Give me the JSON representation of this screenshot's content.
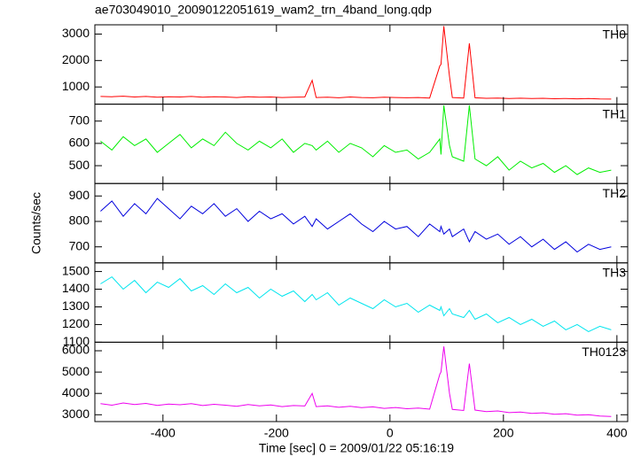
{
  "chart_data": {
    "type": "line",
    "title": "ae703049010_20090122051619_wam2_trn_4band_long.qdp",
    "xlabel": "Time [sec] 0 = 2009/01/22 05:16:19",
    "ylabel": "Counts/sec",
    "xlim": [
      -520,
      419
    ],
    "xticks": [
      -400,
      -200,
      0,
      200,
      400
    ],
    "x": [
      -510,
      -490,
      -470,
      -450,
      -430,
      -410,
      -390,
      -370,
      -350,
      -330,
      -310,
      -290,
      -270,
      -250,
      -230,
      -210,
      -190,
      -170,
      -150,
      -137,
      -130,
      -110,
      -90,
      -70,
      -50,
      -30,
      -10,
      10,
      30,
      50,
      70,
      88,
      90,
      95,
      105,
      110,
      130,
      140,
      150,
      170,
      190,
      210,
      230,
      250,
      270,
      290,
      310,
      330,
      350,
      370,
      390
    ],
    "panels": [
      {
        "ylim": [
          350,
          3350
        ],
        "yticks": [
          1000,
          2000,
          3000
        ],
        "series": [
          {
            "name": "TH0",
            "color": "#ff0000",
            "values": [
              640,
              630,
              650,
              620,
              640,
              610,
              630,
              620,
              640,
              610,
              630,
              620,
              600,
              630,
              610,
              620,
              600,
              610,
              620,
              1250,
              600,
              610,
              590,
              620,
              600,
              590,
              610,
              600,
              590,
              600,
              580,
              1800,
              1850,
              3300,
              1400,
              600,
              580,
              2650,
              590,
              570,
              580,
              560,
              575,
              560,
              570,
              555,
              565,
              550,
              560,
              545,
              540
            ]
          }
        ]
      },
      {
        "ylim": [
          420,
          776
        ],
        "yticks": [
          500,
          600,
          700
        ],
        "series": [
          {
            "name": "TH1",
            "color": "#00ee00",
            "values": [
              610,
              570,
              630,
              590,
              620,
              560,
              600,
              640,
              580,
              620,
              590,
              650,
              600,
              570,
              610,
              580,
              620,
              560,
              600,
              590,
              570,
              610,
              560,
              600,
              580,
              540,
              590,
              560,
              570,
              530,
              560,
              620,
              550,
              770,
              590,
              540,
              520,
              770,
              530,
              500,
              540,
              480,
              520,
              490,
              510,
              470,
              500,
              460,
              490,
              470,
              480
            ]
          }
        ]
      },
      {
        "ylim": [
          637,
          949
        ],
        "yticks": [
          700,
          800,
          900
        ],
        "series": [
          {
            "name": "TH2",
            "color": "#0000dd",
            "values": [
              840,
              880,
              820,
              870,
              830,
              890,
              850,
              810,
              860,
              830,
              870,
              820,
              850,
              800,
              840,
              810,
              830,
              790,
              820,
              780,
              810,
              770,
              800,
              830,
              790,
              760,
              800,
              770,
              780,
              740,
              790,
              760,
              780,
              750,
              770,
              740,
              770,
              720,
              760,
              730,
              750,
              710,
              740,
              700,
              730,
              690,
              720,
              680,
              710,
              690,
              700
            ]
          }
        ]
      },
      {
        "ylim": [
          1100,
          1549
        ],
        "yticks": [
          1100,
          1200,
          1300,
          1400,
          1500
        ],
        "series": [
          {
            "name": "TH3",
            "color": "#00e5ee",
            "values": [
              1430,
              1470,
              1400,
              1450,
              1380,
              1440,
              1410,
              1460,
              1390,
              1420,
              1370,
              1430,
              1380,
              1410,
              1350,
              1400,
              1360,
              1390,
              1330,
              1370,
              1340,
              1380,
              1310,
              1350,
              1320,
              1290,
              1340,
              1300,
              1320,
              1270,
              1310,
              1280,
              1300,
              1250,
              1290,
              1260,
              1240,
              1280,
              1230,
              1260,
              1210,
              1240,
              1200,
              1230,
              1190,
              1220,
              1170,
              1200,
              1160,
              1190,
              1170
            ]
          }
        ]
      },
      {
        "ylim": [
          2680,
          6400
        ],
        "yticks": [
          3000,
          4000,
          5000,
          6000
        ],
        "series": [
          {
            "name": "TH0123",
            "color": "#ee00ee",
            "values": [
              3520,
              3450,
              3550,
              3480,
              3530,
              3440,
              3500,
              3470,
              3520,
              3430,
              3490,
              3450,
              3400,
              3480,
              3420,
              3460,
              3380,
              3430,
              3410,
              4000,
              3380,
              3420,
              3350,
              3400,
              3330,
              3370,
              3300,
              3340,
              3280,
              3310,
              3260,
              4900,
              5000,
              6200,
              4000,
              3250,
              3200,
              5400,
              3220,
              3150,
              3180,
              3100,
              3130,
              3060,
              3090,
              3020,
              3050,
              2980,
              3000,
              2940,
              2920
            ]
          }
        ]
      }
    ]
  }
}
